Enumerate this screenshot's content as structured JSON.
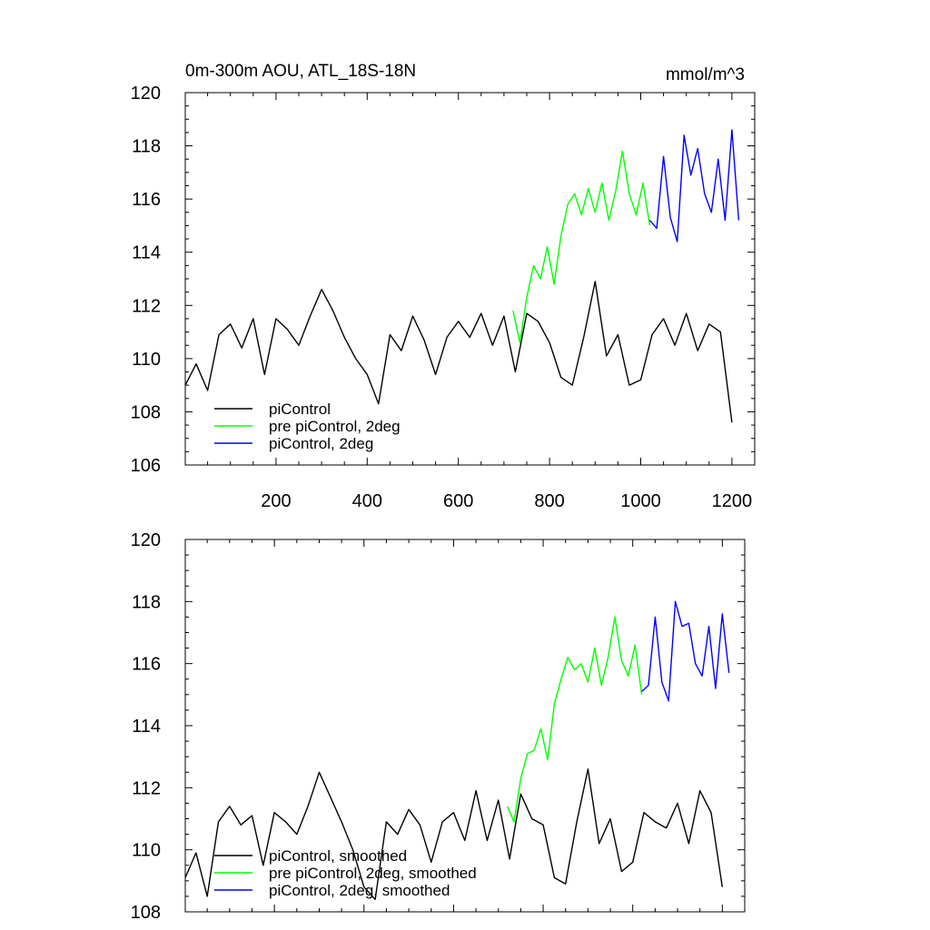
{
  "chart_data": [
    {
      "type": "line",
      "title": "0m-300m AOU, ATL_18S-18N",
      "units": "mmol/m^3",
      "xlabel": "",
      "ylabel": "",
      "xlim": [
        1,
        1250
      ],
      "ylim": [
        106,
        120
      ],
      "x_ticks": [
        200,
        400,
        600,
        800,
        1000,
        1200
      ],
      "y_ticks": [
        106,
        108,
        110,
        112,
        114,
        116,
        118,
        120
      ],
      "legend_position": "lower-left",
      "series": [
        {
          "name": "piControl",
          "color": "#000000",
          "x": [
            1,
            25,
            50,
            75,
            100,
            125,
            150,
            175,
            200,
            225,
            250,
            275,
            300,
            325,
            350,
            375,
            400,
            425,
            450,
            475,
            500,
            525,
            550,
            575,
            600,
            625,
            650,
            675,
            700,
            725,
            750,
            775,
            800,
            825,
            850,
            875,
            900,
            925,
            950,
            975,
            1000,
            1025,
            1050,
            1075,
            1100,
            1125,
            1150,
            1175,
            1200
          ],
          "y": [
            109.0,
            109.8,
            108.8,
            110.9,
            111.3,
            110.4,
            111.5,
            109.4,
            111.5,
            111.1,
            110.5,
            111.6,
            112.6,
            111.8,
            110.8,
            110.0,
            109.4,
            108.3,
            110.9,
            110.3,
            111.6,
            110.7,
            109.4,
            110.8,
            111.4,
            110.8,
            111.7,
            110.5,
            111.6,
            109.5,
            111.7,
            111.4,
            110.6,
            109.3,
            109.0,
            110.8,
            112.9,
            110.1,
            110.9,
            109.0,
            109.2,
            110.9,
            111.5,
            110.5,
            111.7,
            110.3,
            111.3,
            111.0,
            107.6
          ]
        },
        {
          "name": "pre piControl, 2deg",
          "color": "#00ff00",
          "x": [
            720,
            735,
            750,
            765,
            780,
            795,
            810,
            825,
            840,
            855,
            870,
            885,
            900,
            915,
            930,
            945,
            960,
            975,
            990,
            1005,
            1020
          ],
          "y": [
            111.8,
            110.6,
            112.3,
            113.5,
            113.0,
            114.2,
            112.8,
            114.6,
            115.8,
            116.2,
            115.4,
            116.4,
            115.5,
            116.6,
            115.2,
            116.3,
            117.8,
            116.2,
            115.4,
            116.6,
            115.0
          ]
        },
        {
          "name": "piControl, 2deg",
          "color": "#0000ff",
          "x": [
            1020,
            1035,
            1050,
            1065,
            1080,
            1095,
            1110,
            1125,
            1140,
            1155,
            1170,
            1185,
            1200,
            1215
          ],
          "y": [
            115.2,
            114.9,
            117.6,
            115.3,
            114.4,
            118.4,
            116.9,
            117.9,
            116.2,
            115.5,
            117.5,
            115.2,
            118.6,
            115.2
          ]
        }
      ]
    },
    {
      "type": "line",
      "title": "",
      "xlabel": "",
      "ylabel": "",
      "xlim": [
        1,
        1250
      ],
      "ylim": [
        108,
        120
      ],
      "y_ticks": [
        108,
        110,
        112,
        114,
        116,
        118,
        120
      ],
      "legend_position": "lower-left",
      "series": [
        {
          "name": "piControl, smoothed",
          "color": "#000000",
          "x": [
            1,
            25,
            50,
            75,
            100,
            125,
            150,
            175,
            200,
            225,
            250,
            275,
            300,
            325,
            350,
            375,
            400,
            425,
            450,
            475,
            500,
            525,
            550,
            575,
            600,
            625,
            650,
            675,
            700,
            725,
            750,
            775,
            800,
            825,
            850,
            875,
            900,
            925,
            950,
            975,
            1000,
            1025,
            1050,
            1075,
            1100,
            1125,
            1150,
            1175,
            1200
          ],
          "y": [
            109.1,
            109.9,
            108.5,
            110.9,
            111.4,
            110.8,
            111.1,
            109.5,
            111.2,
            110.9,
            110.5,
            111.4,
            112.5,
            111.7,
            110.9,
            110.0,
            108.8,
            108.4,
            110.9,
            110.5,
            111.3,
            110.8,
            109.6,
            110.9,
            111.2,
            110.3,
            111.9,
            110.3,
            111.6,
            109.7,
            111.8,
            111.0,
            110.8,
            109.1,
            108.9,
            110.9,
            112.6,
            110.2,
            111.0,
            109.3,
            109.6,
            111.2,
            110.9,
            110.7,
            111.5,
            110.2,
            111.9,
            111.2,
            108.8
          ]
        },
        {
          "name": "pre piControl, 2deg, smoothed",
          "color": "#00ff00",
          "x": [
            720,
            735,
            750,
            765,
            780,
            795,
            810,
            825,
            840,
            855,
            870,
            885,
            900,
            915,
            930,
            945,
            960,
            975,
            990,
            1005,
            1020
          ],
          "y": [
            111.4,
            110.9,
            112.3,
            113.1,
            113.2,
            113.9,
            112.9,
            114.7,
            115.5,
            116.2,
            115.8,
            116.0,
            115.4,
            116.5,
            115.3,
            116.2,
            117.5,
            116.1,
            115.6,
            116.6,
            115.0
          ]
        },
        {
          "name": "piControl, 2deg, smoothed",
          "color": "#0000ff",
          "x": [
            1020,
            1035,
            1050,
            1065,
            1080,
            1095,
            1110,
            1125,
            1140,
            1155,
            1170,
            1185,
            1200,
            1215
          ],
          "y": [
            115.1,
            115.3,
            117.5,
            115.4,
            114.8,
            118.0,
            117.2,
            117.3,
            116.0,
            115.6,
            117.2,
            115.2,
            117.6,
            115.7
          ]
        }
      ]
    }
  ]
}
